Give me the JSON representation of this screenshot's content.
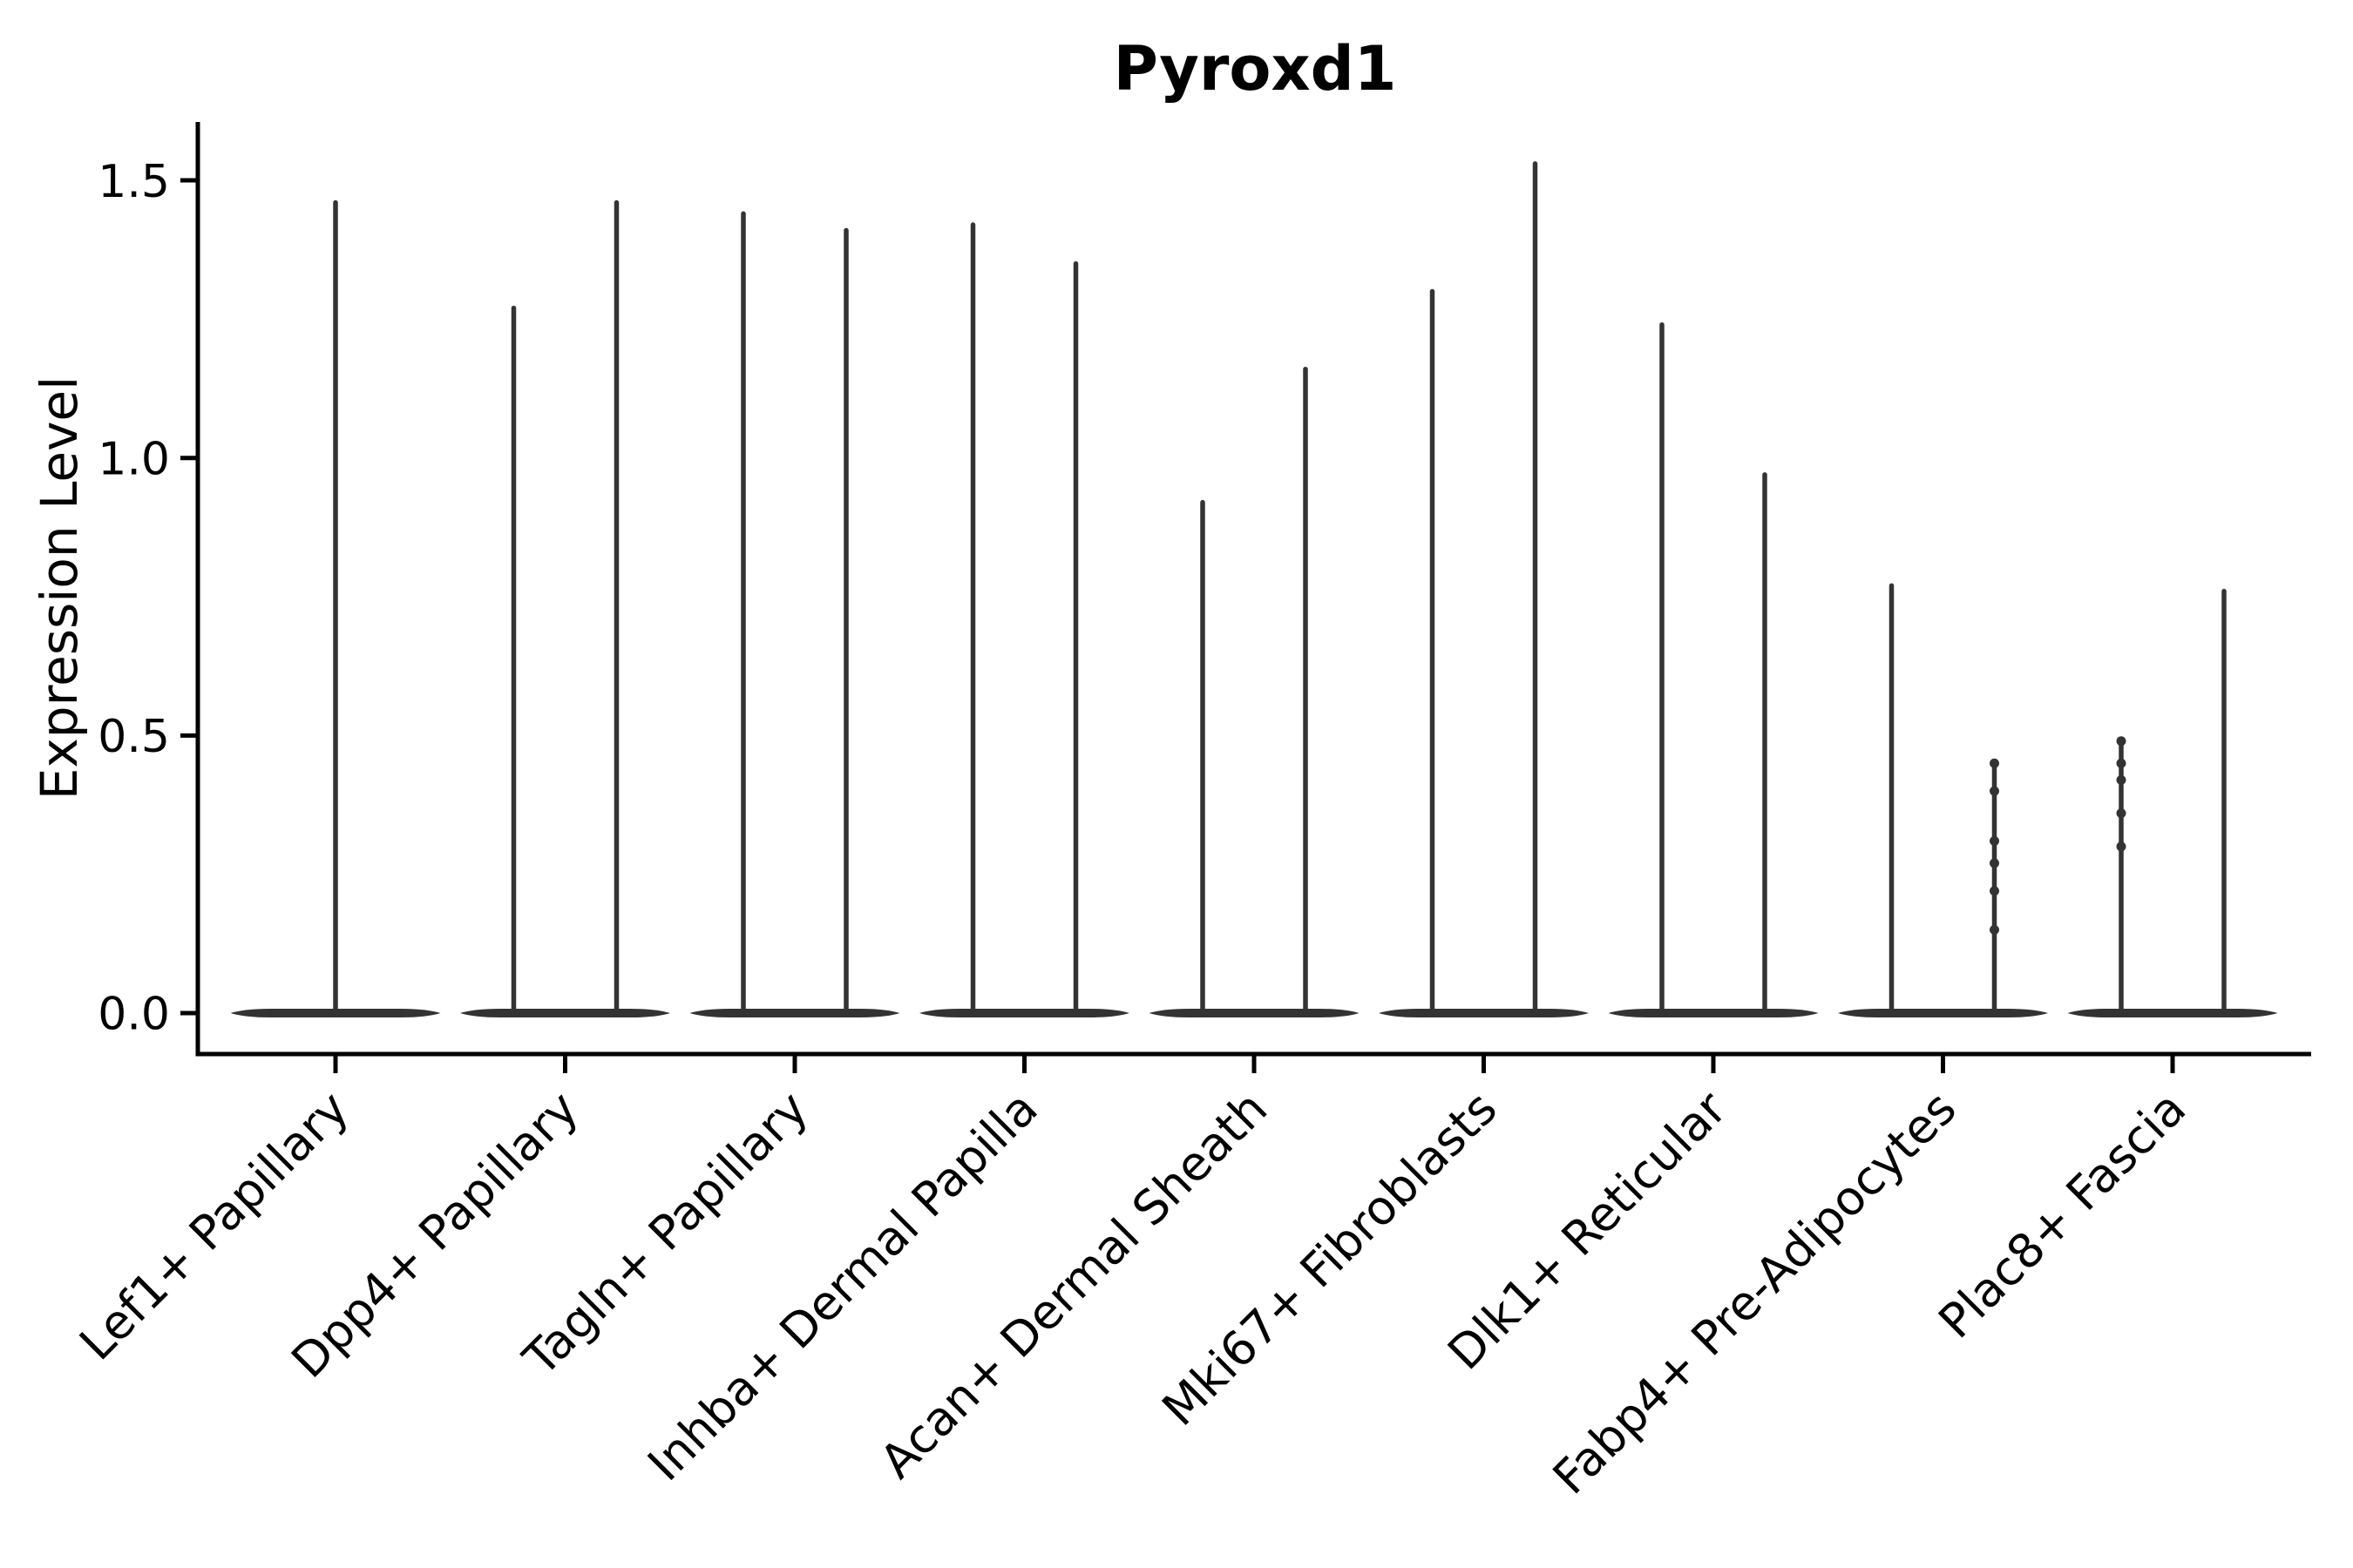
{
  "chart_data": {
    "type": "violin",
    "title": "Pyroxd1",
    "ylabel": "Expression Level",
    "xlabel": "",
    "yticks": [
      0.0,
      0.5,
      1.0,
      1.5
    ],
    "ylim": [
      -0.07,
      1.61
    ],
    "grid": false,
    "legend": false,
    "spines": [
      "left",
      "bottom"
    ],
    "xtick_rotation": 45,
    "colors": {
      "violin": "#333333",
      "axis": "#000000",
      "text": "#000000",
      "background": "#ffffff"
    },
    "categories": [
      "Lef1+ Papillary",
      "Dpp4+ Papillary",
      "Tagln+ Papillary",
      "Inhba+ Dermal Papilla",
      "Acan+ Dermal Sheath",
      "Mki67+ Fibroblasts",
      "Dlk1+ Reticular",
      "Fabp4+ Pre-Adipocytes",
      "Plac8+ Fascia"
    ],
    "violins": [
      {
        "label": "Lef1+ Papillary",
        "baseline_value": 0.0,
        "spikes": [
          {
            "pos": "center",
            "max": 1.46,
            "dots": []
          }
        ]
      },
      {
        "label": "Dpp4+ Papillary",
        "baseline_value": 0.0,
        "spikes": [
          {
            "pos": "left",
            "max": 1.27,
            "dots": []
          },
          {
            "pos": "right",
            "max": 1.46,
            "dots": []
          }
        ]
      },
      {
        "label": "Tagln+ Papillary",
        "baseline_value": 0.0,
        "spikes": [
          {
            "pos": "left",
            "max": 1.44,
            "dots": []
          },
          {
            "pos": "right",
            "max": 1.41,
            "dots": []
          }
        ]
      },
      {
        "label": "Inhba+ Dermal Papilla",
        "baseline_value": 0.0,
        "spikes": [
          {
            "pos": "left",
            "max": 1.42,
            "dots": []
          },
          {
            "pos": "right",
            "max": 1.35,
            "dots": []
          }
        ]
      },
      {
        "label": "Acan+ Dermal Sheath",
        "baseline_value": 0.0,
        "spikes": [
          {
            "pos": "left",
            "max": 0.92,
            "dots": []
          },
          {
            "pos": "right",
            "max": 1.16,
            "dots": []
          }
        ]
      },
      {
        "label": "Mki67+ Fibroblasts",
        "baseline_value": 0.0,
        "spikes": [
          {
            "pos": "left",
            "max": 1.3,
            "dots": []
          },
          {
            "pos": "right",
            "max": 1.53,
            "dots": []
          }
        ]
      },
      {
        "label": "Dlk1+ Reticular",
        "baseline_value": 0.0,
        "spikes": [
          {
            "pos": "left",
            "max": 1.24,
            "dots": []
          },
          {
            "pos": "right",
            "max": 0.97,
            "dots": []
          }
        ]
      },
      {
        "label": "Fabp4+ Pre-Adipocytes",
        "baseline_value": 0.0,
        "spikes": [
          {
            "pos": "left",
            "max": 0.77,
            "dots": []
          },
          {
            "pos": "right",
            "max": 0.45,
            "dots": [
              0.45,
              0.4,
              0.31,
              0.27,
              0.22,
              0.15
            ]
          }
        ]
      },
      {
        "label": "Plac8+ Fascia",
        "baseline_value": 0.0,
        "spikes": [
          {
            "pos": "left",
            "max": 0.49,
            "dots": [
              0.49,
              0.45,
              0.42,
              0.36,
              0.3
            ]
          },
          {
            "pos": "right",
            "max": 0.76,
            "dots": []
          }
        ]
      }
    ]
  }
}
